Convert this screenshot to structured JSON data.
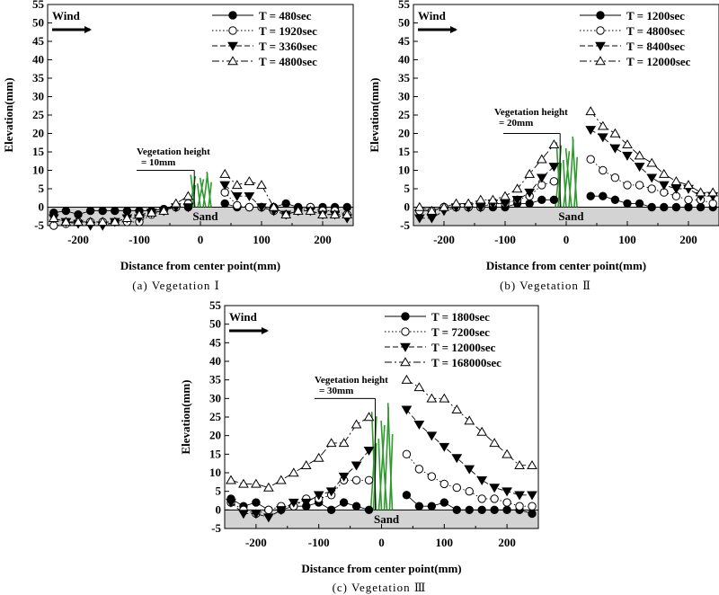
{
  "chart_data": [
    {
      "type": "line",
      "caption": "(a)  Vegetation  Ⅰ",
      "xlabel": "Distance from center point(mm)",
      "ylabel": "Elevation(mm)",
      "xlim": [
        -250,
        250
      ],
      "ylim": [
        -5,
        55
      ],
      "xticks": [
        -200,
        -100,
        0,
        100,
        200
      ],
      "yticks": [
        -5,
        0,
        5,
        10,
        15,
        20,
        25,
        30,
        35,
        40,
        45,
        50,
        55
      ],
      "wind_label": "Wind",
      "sand_label": "Sand",
      "vegetation_label": "Vegetation height",
      "vegetation_value_label": "= 10mm",
      "vegetation_height": 10,
      "legend_position": "top-right",
      "series": [
        {
          "name": "T = 480sec",
          "marker": "filled-circle",
          "line": "solid",
          "x": [
            -240,
            -220,
            -200,
            -180,
            -160,
            -140,
            -120,
            -100,
            -80,
            -60,
            -40,
            -20,
            40,
            60,
            80,
            100,
            120,
            140,
            160,
            180,
            200,
            220,
            240
          ],
          "y": [
            -1.5,
            -1,
            -2,
            -1,
            -1,
            -1,
            -1,
            -1,
            -1,
            -0.5,
            0,
            0,
            1,
            0,
            0,
            0,
            0,
            1,
            0,
            0,
            0,
            0,
            0
          ]
        },
        {
          "name": "T = 1920sec",
          "marker": "open-circle",
          "line": "dotted",
          "x": [
            -240,
            -220,
            -200,
            -180,
            -160,
            -140,
            -120,
            -100,
            -80,
            -60,
            -40,
            -20,
            40,
            60,
            80,
            100,
            120,
            140,
            160,
            180,
            200,
            220,
            240
          ],
          "y": [
            -5,
            -4.5,
            -4,
            -4,
            -4,
            -4,
            -4,
            -4,
            -2,
            -1,
            0,
            1,
            4,
            0.5,
            0,
            0,
            -1,
            -2,
            -1,
            0,
            -1,
            -1,
            -2
          ]
        },
        {
          "name": "T = 3360sec",
          "marker": "filled-triangle-down",
          "line": "dashed",
          "x": [
            -240,
            -220,
            -200,
            -180,
            -160,
            -140,
            -120,
            -100,
            -80,
            -60,
            -40,
            -20,
            40,
            60,
            80,
            100,
            120,
            140,
            160,
            180,
            200,
            220,
            240
          ],
          "y": [
            -3,
            -4,
            -4.5,
            -5,
            -5,
            -4,
            -3,
            -3,
            -1.5,
            -1,
            0,
            0,
            6,
            3,
            3,
            0,
            -1,
            -2,
            -1,
            -1,
            -2,
            -2,
            -3
          ]
        },
        {
          "name": "T = 4800sec",
          "marker": "open-triangle-up",
          "line": "dashdot",
          "x": [
            -240,
            -220,
            -200,
            -180,
            -160,
            -140,
            -120,
            -100,
            -80,
            -60,
            -40,
            -20,
            40,
            60,
            80,
            100,
            120,
            140,
            160,
            180,
            200,
            220,
            240
          ],
          "y": [
            -3,
            -4,
            -4,
            -4,
            -4,
            -4,
            -3,
            -2,
            -1.5,
            -1,
            1,
            3,
            9,
            6,
            7,
            6,
            0,
            -2,
            -1,
            -1,
            -2,
            -2,
            -2
          ]
        }
      ]
    },
    {
      "type": "line",
      "caption": "(b)  Vegetation  Ⅱ",
      "xlabel": "Distance from center point(mm)",
      "ylabel": "Elevation(mm)",
      "xlim": [
        -250,
        250
      ],
      "ylim": [
        -5,
        55
      ],
      "xticks": [
        -200,
        -100,
        0,
        100,
        200
      ],
      "yticks": [
        -5,
        0,
        5,
        10,
        15,
        20,
        25,
        30,
        35,
        40,
        45,
        50,
        55
      ],
      "wind_label": "Wind",
      "sand_label": "Sand",
      "vegetation_label": "Vegetation height",
      "vegetation_value_label": "= 20mm",
      "vegetation_height": 20,
      "legend_position": "top-right",
      "series": [
        {
          "name": "T = 1200sec",
          "marker": "filled-circle",
          "line": "solid",
          "x": [
            -240,
            -220,
            -200,
            -180,
            -160,
            -140,
            -120,
            -100,
            -80,
            -60,
            -40,
            -20,
            40,
            60,
            80,
            100,
            120,
            140,
            160,
            180,
            200,
            220,
            240
          ],
          "y": [
            -1,
            -1,
            0,
            0,
            0,
            0,
            0,
            0,
            1,
            1,
            2,
            2,
            3,
            3,
            2,
            1,
            1,
            0,
            0,
            0,
            0,
            0,
            0
          ]
        },
        {
          "name": "T = 4800sec",
          "marker": "open-circle",
          "line": "dotted",
          "x": [
            -240,
            -220,
            -200,
            -180,
            -160,
            -140,
            -120,
            -100,
            -80,
            -60,
            -40,
            -20,
            40,
            60,
            80,
            100,
            120,
            140,
            160,
            180,
            200,
            220,
            240
          ],
          "y": [
            -1,
            -1,
            0,
            0,
            0,
            0,
            1,
            1,
            2,
            3,
            6,
            7,
            13,
            10,
            8,
            6,
            6,
            5,
            4,
            3,
            2,
            2,
            1
          ]
        },
        {
          "name": "T = 8400sec",
          "marker": "filled-triangle-down",
          "line": "dashed",
          "x": [
            -240,
            -220,
            -200,
            -180,
            -160,
            -140,
            -120,
            -100,
            -80,
            -60,
            -40,
            -20,
            40,
            60,
            80,
            100,
            120,
            140,
            160,
            180,
            200,
            220,
            240
          ],
          "y": [
            -3,
            -3,
            -1,
            0,
            0,
            0,
            1,
            1,
            2,
            4,
            8,
            11,
            21,
            19,
            16,
            14,
            11,
            8,
            6,
            5,
            5,
            3,
            3
          ]
        },
        {
          "name": "T = 12000sec",
          "marker": "open-triangle-up",
          "line": "dashdot",
          "x": [
            -240,
            -220,
            -200,
            -180,
            -160,
            -140,
            -120,
            -100,
            -80,
            -60,
            -40,
            -20,
            40,
            60,
            80,
            100,
            120,
            140,
            160,
            180,
            200,
            220,
            240
          ],
          "y": [
            0,
            -1,
            0,
            1,
            1,
            2,
            2,
            3,
            5,
            9,
            13,
            17,
            26,
            22,
            20,
            17,
            14,
            12,
            9,
            7,
            6,
            4,
            4
          ]
        }
      ]
    },
    {
      "type": "line",
      "caption": "(c)  Vegetation  Ⅲ",
      "xlabel": "Distance from center point(mm)",
      "ylabel": "Elevation(mm)",
      "xlim": [
        -250,
        250
      ],
      "ylim": [
        -5,
        55
      ],
      "xticks": [
        -200,
        -100,
        0,
        100,
        200
      ],
      "yticks": [
        -5,
        0,
        5,
        10,
        15,
        20,
        25,
        30,
        35,
        40,
        45,
        50,
        55
      ],
      "wind_label": "Wind",
      "sand_label": "Sand",
      "vegetation_label": "Vegetation height",
      "vegetation_value_label": "= 30mm",
      "vegetation_height": 30,
      "legend_position": "top-right",
      "series": [
        {
          "name": "T = 1800sec",
          "marker": "filled-circle",
          "line": "solid",
          "x": [
            -240,
            -220,
            -200,
            -180,
            -160,
            -140,
            -120,
            -100,
            -80,
            -60,
            -40,
            -20,
            40,
            60,
            80,
            100,
            120,
            140,
            160,
            180,
            200,
            220,
            240
          ],
          "y": [
            3,
            1,
            2,
            0,
            0,
            1,
            1,
            2,
            0,
            2,
            1,
            0,
            4,
            1,
            1,
            2,
            0,
            0,
            0,
            0,
            0,
            0,
            -1
          ]
        },
        {
          "name": "T = 7200sec",
          "marker": "open-circle",
          "line": "dotted",
          "x": [
            -240,
            -220,
            -200,
            -180,
            -160,
            -140,
            -120,
            -100,
            -80,
            -60,
            -40,
            -20,
            40,
            60,
            80,
            100,
            120,
            140,
            160,
            180,
            200,
            220,
            240
          ],
          "y": [
            2,
            0,
            -1,
            0,
            1,
            1,
            3,
            3,
            4,
            8,
            8,
            8,
            15,
            11,
            9,
            7,
            6,
            5,
            3,
            3,
            2,
            1,
            1
          ]
        },
        {
          "name": "T = 12000sec",
          "marker": "filled-triangle-down",
          "line": "dashed",
          "x": [
            -240,
            -220,
            -200,
            -180,
            -160,
            -140,
            -120,
            -100,
            -80,
            -60,
            -40,
            -20,
            40,
            60,
            80,
            100,
            120,
            140,
            160,
            180,
            200,
            220,
            240
          ],
          "y": [
            2,
            -1,
            -1,
            -2,
            0,
            2,
            2,
            4,
            5,
            9,
            12,
            16,
            27,
            23,
            20,
            17,
            14,
            11,
            8,
            6,
            5,
            4,
            4
          ]
        },
        {
          "name": "T = 168000sec",
          "marker": "open-triangle-up",
          "line": "dashdot",
          "x": [
            -240,
            -220,
            -200,
            -180,
            -160,
            -140,
            -120,
            -100,
            -80,
            -60,
            -40,
            -20,
            40,
            60,
            80,
            100,
            120,
            140,
            160,
            180,
            200,
            220,
            240
          ],
          "y": [
            8,
            7,
            7,
            6,
            8,
            10,
            12,
            14,
            18,
            18,
            23,
            25,
            35,
            33,
            30,
            30,
            27,
            24,
            21,
            18,
            15,
            12,
            12
          ]
        }
      ]
    }
  ]
}
